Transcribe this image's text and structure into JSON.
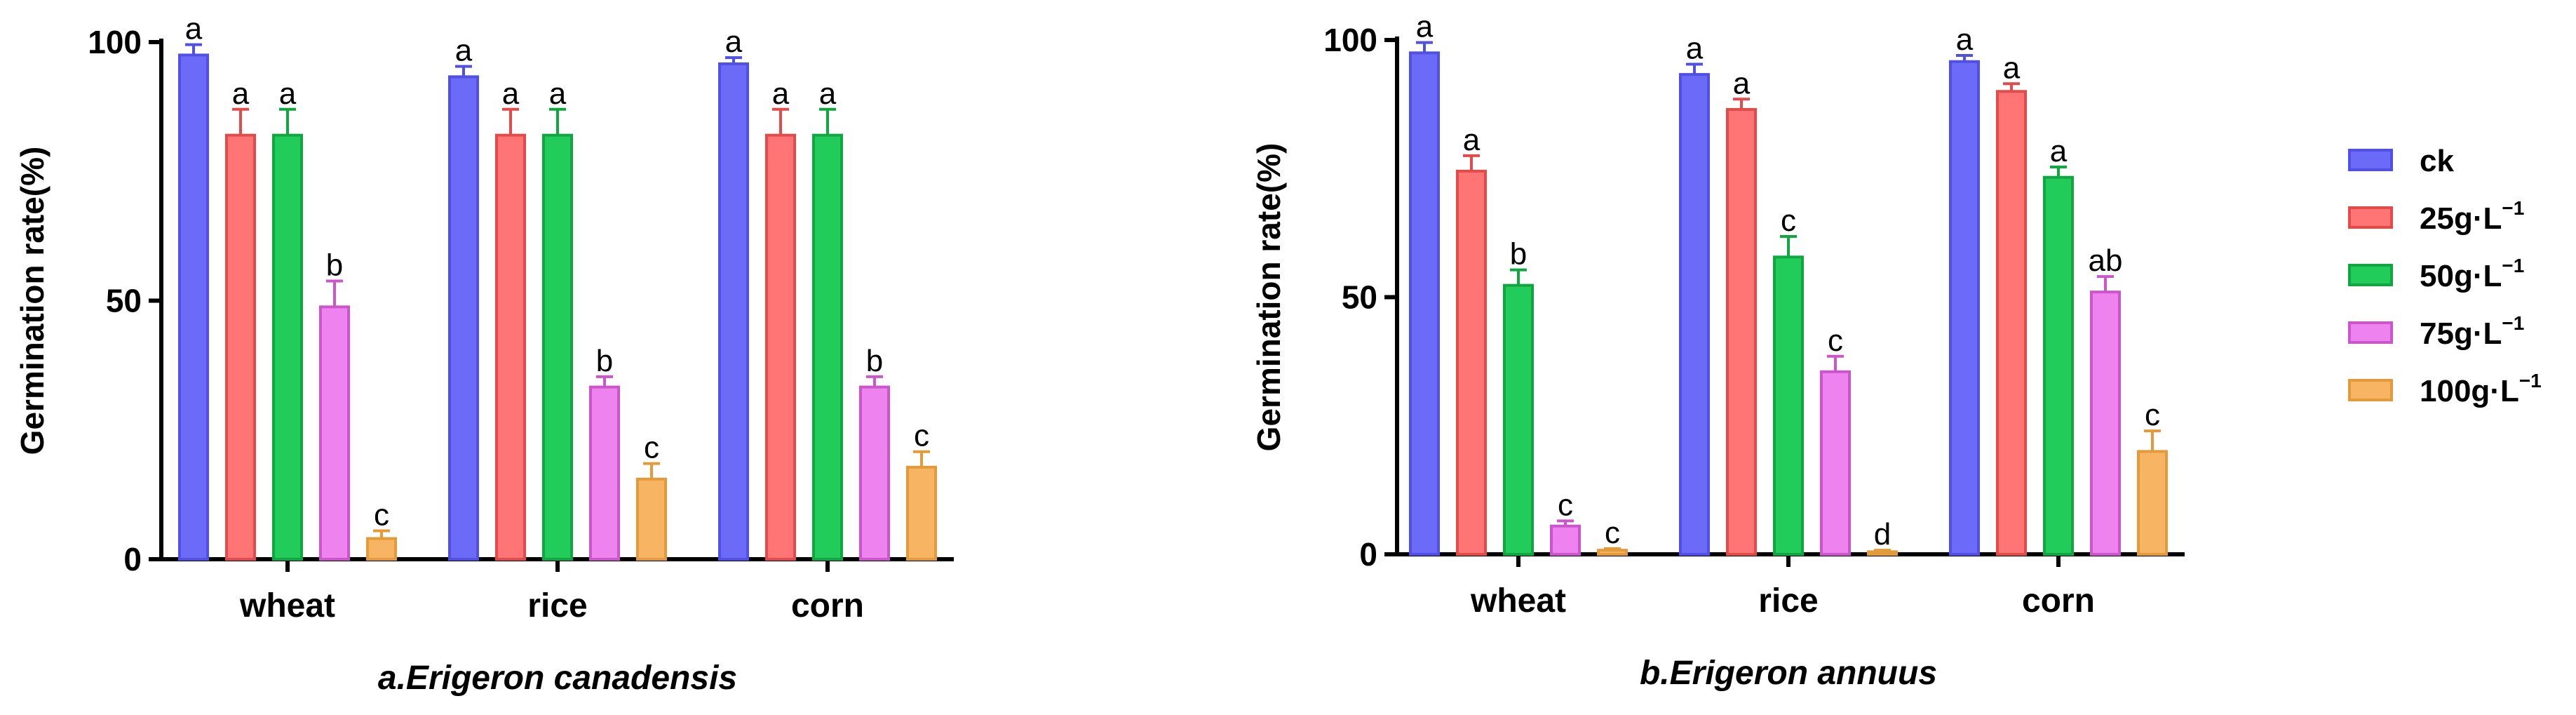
{
  "chart_data": [
    {
      "type": "bar",
      "caption": "a.Erigeron canadensis",
      "ylabel": "Germination rate(%)",
      "xlabel": "",
      "ylim": [
        0,
        100
      ],
      "yticks": [
        "0",
        "50",
        "100"
      ],
      "categories": [
        "wheat",
        "rice",
        "corn"
      ],
      "series": [
        {
          "name": "ck",
          "color": "#6b6bf7",
          "edge": "#5050e6",
          "values": [
            97.5,
            93.3,
            95.8
          ],
          "errors": [
            2.0,
            2.0,
            1.2
          ],
          "labels": [
            "a",
            "a",
            "a"
          ]
        },
        {
          "name": "25g·L⁻¹",
          "color": "#ff7575",
          "edge": "#e34b4b",
          "values": [
            82.0,
            82.0,
            82.0
          ],
          "errors": [
            5.0,
            5.0,
            5.0
          ],
          "labels": [
            "a",
            "a",
            "a"
          ]
        },
        {
          "name": "50g·L⁻¹",
          "color": "#22cc5a",
          "edge": "#10a640",
          "values": [
            82.0,
            82.0,
            82.0
          ],
          "errors": [
            5.0,
            5.0,
            5.0
          ],
          "labels": [
            "a",
            "a",
            "a"
          ]
        },
        {
          "name": "75g·L⁻¹",
          "color": "#ee82ee",
          "edge": "#cc55cc",
          "values": [
            48.8,
            33.3,
            33.3
          ],
          "errors": [
            5.0,
            2.0,
            2.0
          ],
          "labels": [
            "b",
            "b",
            "b"
          ]
        },
        {
          "name": "100g·L⁻¹",
          "color": "#f7b564",
          "edge": "#e39a3a",
          "values": [
            4.0,
            15.5,
            17.8
          ],
          "errors": [
            1.5,
            3.0,
            3.0
          ],
          "labels": [
            "c",
            "c",
            "c"
          ]
        }
      ]
    },
    {
      "type": "bar",
      "caption": "b.Erigeron annuus",
      "ylabel": "Germination rate(%)",
      "xlabel": "",
      "ylim": [
        0,
        100
      ],
      "yticks": [
        "0",
        "50",
        "100"
      ],
      "categories": [
        "wheat",
        "rice",
        "corn"
      ],
      "series": [
        {
          "name": "ck",
          "color": "#6b6bf7",
          "edge": "#5050e6",
          "values": [
            97.5,
            93.3,
            95.8
          ],
          "errors": [
            2.0,
            2.0,
            1.2
          ],
          "labels": [
            "a",
            "a",
            "a"
          ]
        },
        {
          "name": "25g·L⁻¹",
          "color": "#ff7575",
          "edge": "#e34b4b",
          "values": [
            74.5,
            86.5,
            90.0
          ],
          "errors": [
            3.0,
            2.0,
            1.5
          ],
          "labels": [
            "a",
            "a",
            "a"
          ]
        },
        {
          "name": "50g·L⁻¹",
          "color": "#22cc5a",
          "edge": "#10a640",
          "values": [
            52.3,
            57.8,
            73.3
          ],
          "errors": [
            3.0,
            4.0,
            2.0
          ],
          "labels": [
            "b",
            "c",
            "a"
          ]
        },
        {
          "name": "75g·L⁻¹",
          "color": "#ee82ee",
          "edge": "#cc55cc",
          "values": [
            5.5,
            35.5,
            51.0
          ],
          "errors": [
            1.0,
            3.0,
            3.0
          ],
          "labels": [
            "c",
            "c",
            "ab"
          ]
        },
        {
          "name": "100g·L⁻¹",
          "color": "#f7b564",
          "edge": "#e39a3a",
          "values": [
            0.8,
            0.5,
            20.0
          ],
          "errors": [
            0.3,
            0.3,
            4.0
          ],
          "labels": [
            "c",
            "d",
            "c"
          ]
        }
      ]
    }
  ],
  "legend": {
    "placement": "right",
    "items": [
      {
        "base": "ck",
        "unit": "",
        "sup": "",
        "color": "#6b6bf7",
        "edge": "#5050e6"
      },
      {
        "base": "25g",
        "unit": "·L",
        "sup": "−1",
        "color": "#ff7575",
        "edge": "#e34b4b"
      },
      {
        "base": "50g",
        "unit": "·L",
        "sup": "−1",
        "color": "#22cc5a",
        "edge": "#10a640"
      },
      {
        "base": "75g",
        "unit": "·L",
        "sup": "−1",
        "color": "#ee82ee",
        "edge": "#cc55cc"
      },
      {
        "base": "100g",
        "unit": "·L",
        "sup": "−1",
        "color": "#f7b564",
        "edge": "#e39a3a"
      }
    ]
  }
}
